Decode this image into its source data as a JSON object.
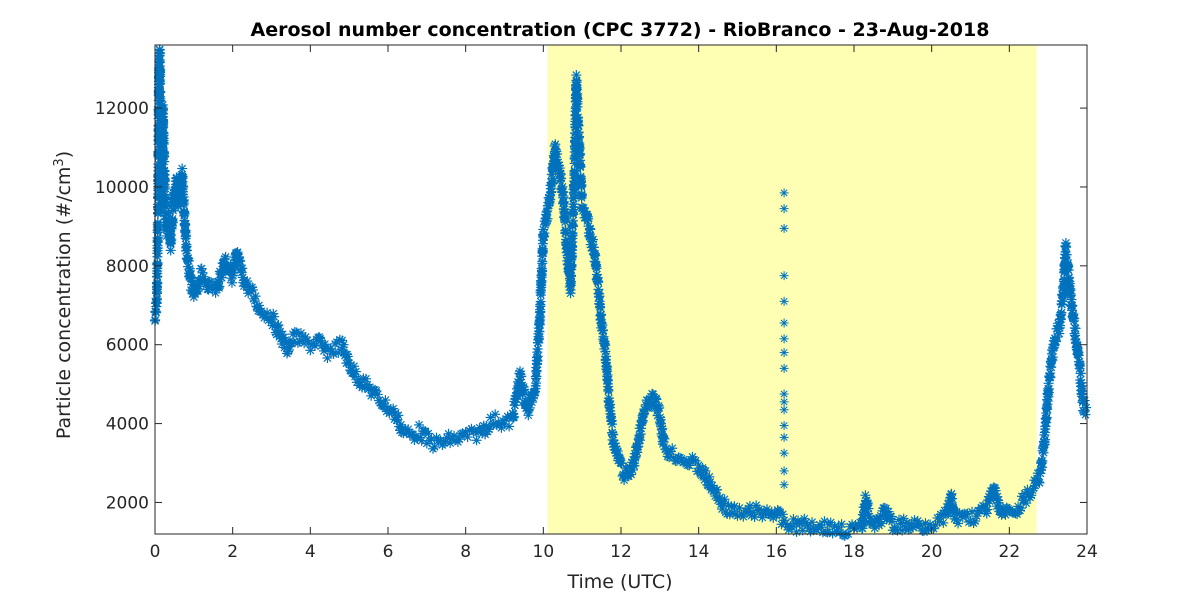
{
  "chart_data": {
    "type": "scatter",
    "title": "Aerosol number concentration (CPC 3772) - RioBranco - 23-Aug-2018",
    "xlabel": "Time (UTC)",
    "ylabel": "Particle concentration (#/cm",
    "ylabel_superscript": "3",
    "ylabel_suffix": ")",
    "xlim": [
      0,
      24
    ],
    "ylim": [
      1200,
      13600
    ],
    "xticks": [
      0,
      2,
      4,
      6,
      8,
      10,
      12,
      14,
      16,
      18,
      20,
      22,
      24
    ],
    "yticks": [
      2000,
      4000,
      6000,
      8000,
      10000,
      12000
    ],
    "grid": false,
    "marker": "asterisk",
    "colors": {
      "series": "#0072BD",
      "highlight": "#FFFFB3",
      "axis": "#262626"
    },
    "highlight_region": {
      "x_start": 10.1,
      "x_end": 22.7
    },
    "series": [
      {
        "values_description_free": true,
        "points": [
          [
            0.0,
            6600
          ],
          [
            0.05,
            7200
          ],
          [
            0.08,
            9500
          ],
          [
            0.1,
            12500
          ],
          [
            0.12,
            13400
          ],
          [
            0.15,
            11000
          ],
          [
            0.18,
            9500
          ],
          [
            0.2,
            12000
          ],
          [
            0.25,
            10000
          ],
          [
            0.3,
            8800
          ],
          [
            0.35,
            9200
          ],
          [
            0.4,
            8500
          ],
          [
            0.5,
            9800
          ],
          [
            0.55,
            10200
          ],
          [
            0.6,
            9600
          ],
          [
            0.7,
            10300
          ],
          [
            0.8,
            8500
          ],
          [
            0.9,
            7700
          ],
          [
            1.0,
            7200
          ],
          [
            1.2,
            7800
          ],
          [
            1.4,
            7500
          ],
          [
            1.6,
            7400
          ],
          [
            1.8,
            8200
          ],
          [
            2.0,
            7700
          ],
          [
            2.1,
            8300
          ],
          [
            2.3,
            7600
          ],
          [
            2.5,
            7300
          ],
          [
            2.7,
            6900
          ],
          [
            3.0,
            6700
          ],
          [
            3.2,
            6300
          ],
          [
            3.4,
            5900
          ],
          [
            3.6,
            6200
          ],
          [
            3.8,
            6100
          ],
          [
            4.0,
            6000
          ],
          [
            4.2,
            6100
          ],
          [
            4.4,
            5800
          ],
          [
            4.6,
            5900
          ],
          [
            4.8,
            6000
          ],
          [
            5.0,
            5500
          ],
          [
            5.2,
            5200
          ],
          [
            5.4,
            5000
          ],
          [
            5.6,
            4800
          ],
          [
            5.8,
            4600
          ],
          [
            6.0,
            4400
          ],
          [
            6.2,
            4200
          ],
          [
            6.4,
            3800
          ],
          [
            6.6,
            3700
          ],
          [
            6.8,
            3800
          ],
          [
            7.0,
            3600
          ],
          [
            7.2,
            3500
          ],
          [
            7.4,
            3500
          ],
          [
            7.6,
            3600
          ],
          [
            7.8,
            3600
          ],
          [
            8.0,
            3700
          ],
          [
            8.2,
            3700
          ],
          [
            8.4,
            3800
          ],
          [
            8.6,
            4000
          ],
          [
            8.8,
            4100
          ],
          [
            9.0,
            4000
          ],
          [
            9.2,
            4100
          ],
          [
            9.4,
            5200
          ],
          [
            9.6,
            4300
          ],
          [
            9.8,
            5000
          ],
          [
            9.9,
            6500
          ],
          [
            10.0,
            8800
          ],
          [
            10.1,
            9300
          ],
          [
            10.2,
            10000
          ],
          [
            10.3,
            11000
          ],
          [
            10.4,
            10500
          ],
          [
            10.5,
            9800
          ],
          [
            10.6,
            8500
          ],
          [
            10.7,
            7400
          ],
          [
            10.8,
            10300
          ],
          [
            10.85,
            12700
          ],
          [
            10.9,
            11500
          ],
          [
            11.0,
            9500
          ],
          [
            11.1,
            9300
          ],
          [
            11.2,
            8800
          ],
          [
            11.3,
            8400
          ],
          [
            11.4,
            7600
          ],
          [
            11.5,
            6500
          ],
          [
            11.6,
            5800
          ],
          [
            11.7,
            4500
          ],
          [
            11.8,
            3600
          ],
          [
            11.9,
            3200
          ],
          [
            12.0,
            2900
          ],
          [
            12.1,
            2700
          ],
          [
            12.2,
            2700
          ],
          [
            12.3,
            2900
          ],
          [
            12.4,
            3300
          ],
          [
            12.5,
            3800
          ],
          [
            12.6,
            4300
          ],
          [
            12.7,
            4500
          ],
          [
            12.8,
            4600
          ],
          [
            12.9,
            4500
          ],
          [
            13.0,
            4200
          ],
          [
            13.1,
            3500
          ],
          [
            13.2,
            3300
          ],
          [
            13.4,
            3200
          ],
          [
            13.6,
            3100
          ],
          [
            13.8,
            3000
          ],
          [
            14.0,
            2900
          ],
          [
            14.2,
            2600
          ],
          [
            14.4,
            2300
          ],
          [
            14.6,
            2000
          ],
          [
            14.8,
            1800
          ],
          [
            15.0,
            1700
          ],
          [
            15.2,
            1700
          ],
          [
            15.4,
            1800
          ],
          [
            15.6,
            1700
          ],
          [
            15.8,
            1800
          ],
          [
            16.0,
            1700
          ],
          [
            16.2,
            1500
          ],
          [
            16.4,
            1400
          ],
          [
            16.6,
            1450
          ],
          [
            16.8,
            1400
          ],
          [
            17.0,
            1450
          ],
          [
            17.2,
            1400
          ],
          [
            17.4,
            1350
          ],
          [
            17.6,
            1350
          ],
          [
            17.8,
            1300
          ],
          [
            18.0,
            1300
          ],
          [
            18.2,
            1350
          ],
          [
            18.3,
            2100
          ],
          [
            18.4,
            1600
          ],
          [
            18.6,
            1400
          ],
          [
            18.8,
            1800
          ],
          [
            19.0,
            1400
          ],
          [
            19.2,
            1450
          ],
          [
            19.4,
            1400
          ],
          [
            19.6,
            1450
          ],
          [
            19.8,
            1400
          ],
          [
            20.0,
            1500
          ],
          [
            20.2,
            1500
          ],
          [
            20.4,
            1700
          ],
          [
            20.5,
            2100
          ],
          [
            20.6,
            1600
          ],
          [
            20.8,
            1700
          ],
          [
            21.0,
            1600
          ],
          [
            21.2,
            1700
          ],
          [
            21.4,
            1800
          ],
          [
            21.6,
            2300
          ],
          [
            21.8,
            1700
          ],
          [
            22.0,
            1900
          ],
          [
            22.2,
            1800
          ],
          [
            22.4,
            2100
          ],
          [
            22.6,
            2300
          ],
          [
            22.8,
            2700
          ],
          [
            22.9,
            3500
          ],
          [
            23.0,
            4800
          ],
          [
            23.1,
            5700
          ],
          [
            23.2,
            6200
          ],
          [
            23.3,
            6500
          ],
          [
            23.4,
            7500
          ],
          [
            23.45,
            8500
          ],
          [
            23.5,
            8100
          ],
          [
            23.6,
            7000
          ],
          [
            23.7,
            6300
          ],
          [
            23.8,
            5500
          ],
          [
            23.9,
            4500
          ],
          [
            24.0,
            4300
          ]
        ],
        "isolated_points": [
          [
            16.2,
            9850
          ],
          [
            16.2,
            9450
          ],
          [
            16.2,
            8950
          ],
          [
            16.2,
            7750
          ],
          [
            16.2,
            7100
          ],
          [
            16.2,
            6550
          ],
          [
            16.2,
            6150
          ],
          [
            16.2,
            5800
          ],
          [
            16.2,
            5400
          ],
          [
            16.2,
            4750
          ],
          [
            16.2,
            4550
          ],
          [
            16.2,
            4350
          ],
          [
            16.2,
            3950
          ],
          [
            16.2,
            3650
          ],
          [
            16.2,
            3250
          ],
          [
            16.2,
            2800
          ],
          [
            16.2,
            2450
          ]
        ]
      }
    ]
  }
}
